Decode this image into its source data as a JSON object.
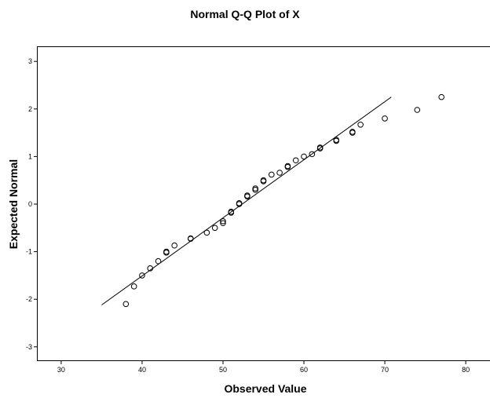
{
  "chart_data": {
    "type": "scatter",
    "title": "Normal Q-Q Plot of X",
    "xlabel": "Observed Value",
    "ylabel": "Expected Normal",
    "xlim": [
      27,
      83
    ],
    "ylim": [
      -3.3,
      3.3
    ],
    "xticks": [
      30,
      40,
      50,
      60,
      70,
      80
    ],
    "yticks": [
      -3,
      -2,
      -1,
      0,
      1,
      2,
      3
    ],
    "grid": false,
    "series": [
      {
        "points": [
          [
            38,
            -2.1
          ],
          [
            39,
            -1.73
          ],
          [
            40,
            -1.5
          ],
          [
            41,
            -1.35
          ],
          [
            42,
            -1.2
          ],
          [
            43,
            -1.02
          ],
          [
            43,
            -1.0
          ],
          [
            44,
            -0.87
          ],
          [
            46,
            -0.73
          ],
          [
            46,
            -0.72
          ],
          [
            48,
            -0.6
          ],
          [
            49,
            -0.5
          ],
          [
            50,
            -0.4
          ],
          [
            50,
            -0.36
          ],
          [
            51,
            -0.18
          ],
          [
            51,
            -0.16
          ],
          [
            52,
            0.0
          ],
          [
            52,
            0.02
          ],
          [
            53,
            0.16
          ],
          [
            53,
            0.18
          ],
          [
            54,
            0.3
          ],
          [
            54,
            0.33
          ],
          [
            55,
            0.48
          ],
          [
            55,
            0.5
          ],
          [
            56,
            0.62
          ],
          [
            57,
            0.66
          ],
          [
            58,
            0.78
          ],
          [
            58,
            0.8
          ],
          [
            59,
            0.92
          ],
          [
            60,
            1.0
          ],
          [
            61,
            1.05
          ],
          [
            62,
            1.17
          ],
          [
            62,
            1.19
          ],
          [
            64,
            1.33
          ],
          [
            64,
            1.35
          ],
          [
            66,
            1.5
          ],
          [
            66,
            1.52
          ],
          [
            67,
            1.67
          ],
          [
            70,
            1.8
          ],
          [
            74,
            1.98
          ],
          [
            77,
            2.25
          ]
        ]
      }
    ],
    "reference_line": {
      "x": [
        35,
        70.8
      ],
      "y": [
        -2.12,
        2.25
      ]
    }
  }
}
